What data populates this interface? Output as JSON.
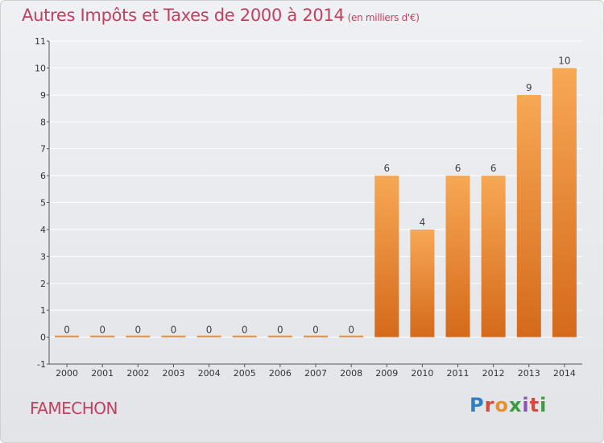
{
  "header": {
    "title": "Autres Impôts et Taxes de 2000 à 2014",
    "unit": "(en milliers d'€)"
  },
  "footer": {
    "commune": "FAMECHON",
    "logo_text": "Proxiti"
  },
  "colors": {
    "title": "#c04060",
    "bar_top": "#f7a855",
    "bar_bottom": "#d46a1b",
    "axis": "#555555",
    "grid": "#ffffff"
  },
  "chart_data": {
    "type": "bar",
    "title": "Autres Impôts et Taxes de 2000 à 2014",
    "subtitle": "(en milliers d'€)",
    "xlabel": "",
    "ylabel": "",
    "categories": [
      "2000",
      "2001",
      "2002",
      "2003",
      "2004",
      "2005",
      "2006",
      "2007",
      "2008",
      "2009",
      "2010",
      "2011",
      "2012",
      "2013",
      "2014"
    ],
    "values": [
      0,
      0,
      0,
      0,
      0,
      0,
      0,
      0,
      0,
      6,
      4,
      6,
      6,
      9,
      10
    ],
    "data_labels": [
      "0",
      "0",
      "0",
      "0",
      "0",
      "0",
      "0",
      "0",
      "0",
      "6",
      "4",
      "6",
      "6",
      "9",
      "10"
    ],
    "ylim": [
      -1,
      11
    ],
    "yticks": [
      -1,
      0,
      1,
      2,
      3,
      4,
      5,
      6,
      7,
      8,
      9,
      10,
      11
    ],
    "ytick_labels": [
      "-1",
      "0",
      "1",
      "2",
      "3",
      "4",
      "5",
      "6",
      "7",
      "8",
      "9",
      "10",
      "11"
    ],
    "grid": true,
    "legend": "none"
  }
}
